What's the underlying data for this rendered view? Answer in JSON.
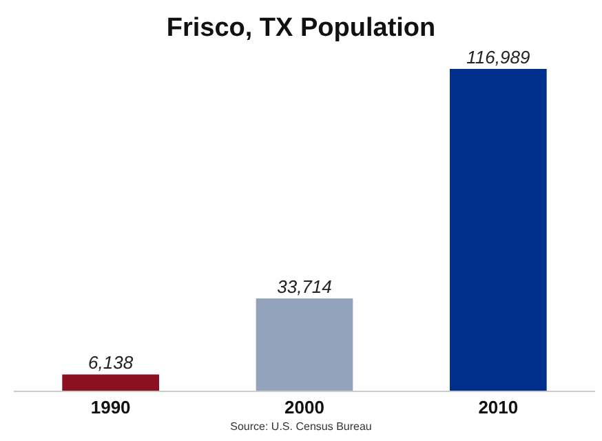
{
  "chart_data": {
    "type": "bar",
    "title": "Frisco, TX Population",
    "categories": [
      "1990",
      "2000",
      "2010"
    ],
    "values": [
      6138,
      33714,
      116989
    ],
    "colors": [
      "#8b1020",
      "#94a3bc",
      "#00308c"
    ],
    "value_labels": [
      "6,138",
      "33,714",
      "116,989"
    ],
    "annotations": [
      "Source: U.S. Census Bureau"
    ]
  }
}
